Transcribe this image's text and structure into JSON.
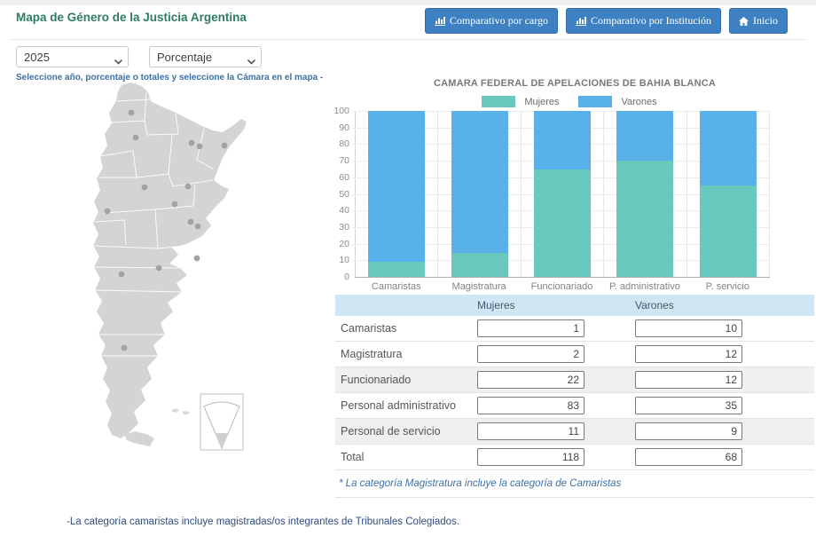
{
  "header": {
    "title": "Mapa de Género de la Justicia Argentina",
    "buttons": [
      {
        "label": "Comparativo por cargo",
        "icon": "bar-chart-icon"
      },
      {
        "label": "Comparativo por Institución",
        "icon": "bar-chart-icon"
      },
      {
        "label": "Inicio",
        "icon": "home-icon"
      }
    ]
  },
  "filters": {
    "year_selected": "2025",
    "metric_selected": "Porcentaje",
    "hint": "Seleccione año, porcentaje o totales y seleccione la Cámara en el mapa -"
  },
  "chart_data": {
    "type": "bar",
    "stacked": true,
    "title": "CAMARA FEDERAL DE APELACIONES DE BAHIA BLANCA",
    "categories": [
      "Camaristas",
      "Magistratura",
      "Funcionariado",
      "P. administrativo",
      "P. servicio"
    ],
    "series": [
      {
        "name": "Mujeres",
        "color": "#68c9bc",
        "values": [
          9.1,
          14.3,
          64.7,
          70.3,
          55.0
        ]
      },
      {
        "name": "Varones",
        "color": "#58b1e9",
        "values": [
          90.9,
          85.7,
          35.3,
          29.7,
          45.0
        ]
      }
    ],
    "xlabel": "",
    "ylabel": "",
    "ylim": [
      0,
      100
    ],
    "ytick_step": 10,
    "grid": true,
    "legend_position": "top"
  },
  "table": {
    "columns": [
      "Mujeres",
      "Varones"
    ],
    "rows": [
      {
        "label": "Camaristas",
        "mujeres": "1",
        "varones": "10",
        "shaded": false
      },
      {
        "label": "Magistratura",
        "mujeres": "2",
        "varones": "12",
        "shaded": false
      },
      {
        "label": "Funcionariado",
        "mujeres": "22",
        "varones": "12",
        "shaded": true
      },
      {
        "label": "Personal administrativo",
        "mujeres": "83",
        "varones": "35",
        "shaded": false
      },
      {
        "label": "Personal de servicio",
        "mujeres": "11",
        "varones": "9",
        "shaded": true
      },
      {
        "label": "Total",
        "mujeres": "118",
        "varones": "68",
        "shaded": false
      }
    ],
    "footnote": "* La categoría Magistratura incluye la categoría de Camaristas"
  },
  "map": {
    "fill": "#d4d4d4",
    "dot_color": "#a2a2a2",
    "dots": [
      [
        78,
        37
      ],
      [
        83,
        65
      ],
      [
        146,
        71
      ],
      [
        155,
        75
      ],
      [
        183,
        74
      ],
      [
        93,
        121
      ],
      [
        142,
        120
      ],
      [
        127,
        140
      ],
      [
        51,
        148
      ],
      [
        145,
        160
      ],
      [
        153,
        165
      ],
      [
        152,
        201
      ],
      [
        109,
        212
      ],
      [
        67,
        219
      ],
      [
        70,
        302
      ]
    ]
  },
  "footer_note": "-La categoría camaristas incluye magistradas/os integrantes de Tribunales Colegiados."
}
